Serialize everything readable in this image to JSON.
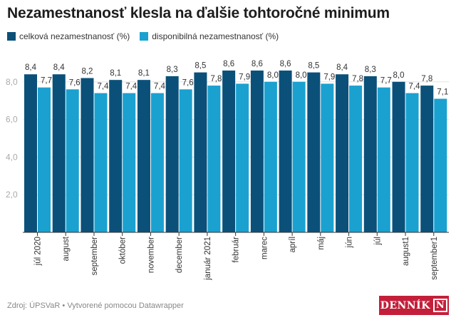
{
  "title": "Nezamestnanosť klesla na ďalšie tohtoročné minimum",
  "footer": "Zdroj: ÚPSVaR • Vytvorené pomocou Datawrapper",
  "logo_text": "DENNÍK N",
  "colors": {
    "series1": "#0b5079",
    "series2": "#1aa1d0",
    "logo": "#c41f3a"
  },
  "chart_data": {
    "type": "bar",
    "title": "Nezamestnanosť klesla na ďalšie tohtoročné minimum",
    "categories": [
      "júl 2020",
      "august",
      "september",
      "október",
      "november",
      "december",
      "január 2021",
      "február",
      "marec",
      "apríl",
      "máj",
      "jún",
      "júl",
      "august1",
      "september1"
    ],
    "series": [
      {
        "name": "celková nezamestnanosť (%)",
        "values": [
          8.4,
          8.4,
          8.2,
          8.1,
          8.1,
          8.3,
          8.5,
          8.6,
          8.6,
          8.6,
          8.5,
          8.4,
          8.3,
          8.0,
          7.8
        ]
      },
      {
        "name": "disponibilná nezamestnanosť (%)",
        "values": [
          7.7,
          7.6,
          7.4,
          7.4,
          7.4,
          7.6,
          7.8,
          7.9,
          8.0,
          8.0,
          7.9,
          7.8,
          7.7,
          7.4,
          7.1
        ]
      }
    ],
    "yticks": [
      "2,0",
      "4,0",
      "6,0",
      "8,0"
    ],
    "ylim": [
      0,
      8.6
    ],
    "grid": true,
    "legend": "top-left",
    "xlabel": "",
    "ylabel": ""
  }
}
